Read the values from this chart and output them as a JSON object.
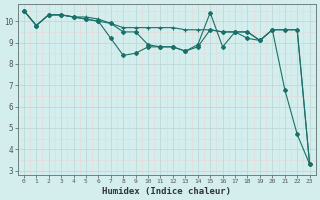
{
  "xlabel": "Humidex (Indice chaleur)",
  "background_color": "#d4eeee",
  "grid_color_major": "#c0d8d8",
  "grid_color_minor": "#e0f0f0",
  "line_color": "#1a7068",
  "xlim": [
    -0.5,
    23.5
  ],
  "ylim": [
    2.8,
    10.8
  ],
  "xticks": [
    0,
    1,
    2,
    3,
    4,
    5,
    6,
    7,
    8,
    9,
    10,
    11,
    12,
    13,
    14,
    15,
    16,
    17,
    18,
    19,
    20,
    21,
    22,
    23
  ],
  "yticks": [
    3,
    4,
    5,
    6,
    7,
    8,
    9,
    10
  ],
  "series1_x": [
    0,
    1,
    2,
    3,
    4,
    5,
    6,
    7,
    8,
    9,
    10,
    11,
    12,
    13,
    14,
    15,
    16,
    17,
    18,
    19,
    20,
    21,
    22,
    23
  ],
  "series1_y": [
    10.5,
    9.8,
    10.3,
    10.3,
    10.2,
    10.2,
    10.1,
    9.9,
    9.7,
    9.7,
    9.7,
    9.7,
    9.7,
    9.6,
    9.6,
    9.6,
    9.5,
    9.5,
    9.5,
    9.1,
    9.6,
    9.6,
    9.6,
    3.3
  ],
  "series2_x": [
    0,
    1,
    2,
    3,
    4,
    5,
    6,
    7,
    8,
    9,
    10,
    11,
    12,
    13,
    14,
    15,
    16,
    17,
    18,
    19,
    20,
    21,
    22,
    23
  ],
  "series2_y": [
    10.5,
    9.8,
    10.3,
    10.3,
    10.2,
    10.1,
    10.0,
    9.2,
    8.4,
    8.5,
    8.8,
    8.8,
    8.8,
    8.6,
    8.9,
    10.4,
    8.8,
    9.5,
    9.2,
    9.1,
    9.6,
    6.8,
    4.7,
    3.3
  ],
  "series3_x": [
    0,
    1,
    2,
    3,
    4,
    5,
    6,
    7,
    8,
    9,
    10,
    11,
    12,
    13,
    14,
    15,
    16,
    17,
    18,
    19,
    20,
    21,
    22,
    23
  ],
  "series3_y": [
    10.5,
    9.8,
    10.3,
    10.3,
    10.2,
    10.1,
    10.0,
    9.9,
    9.5,
    9.5,
    8.9,
    8.8,
    8.8,
    8.6,
    8.8,
    9.6,
    9.5,
    9.5,
    9.5,
    9.1,
    9.6,
    9.6,
    9.6,
    3.3
  ]
}
